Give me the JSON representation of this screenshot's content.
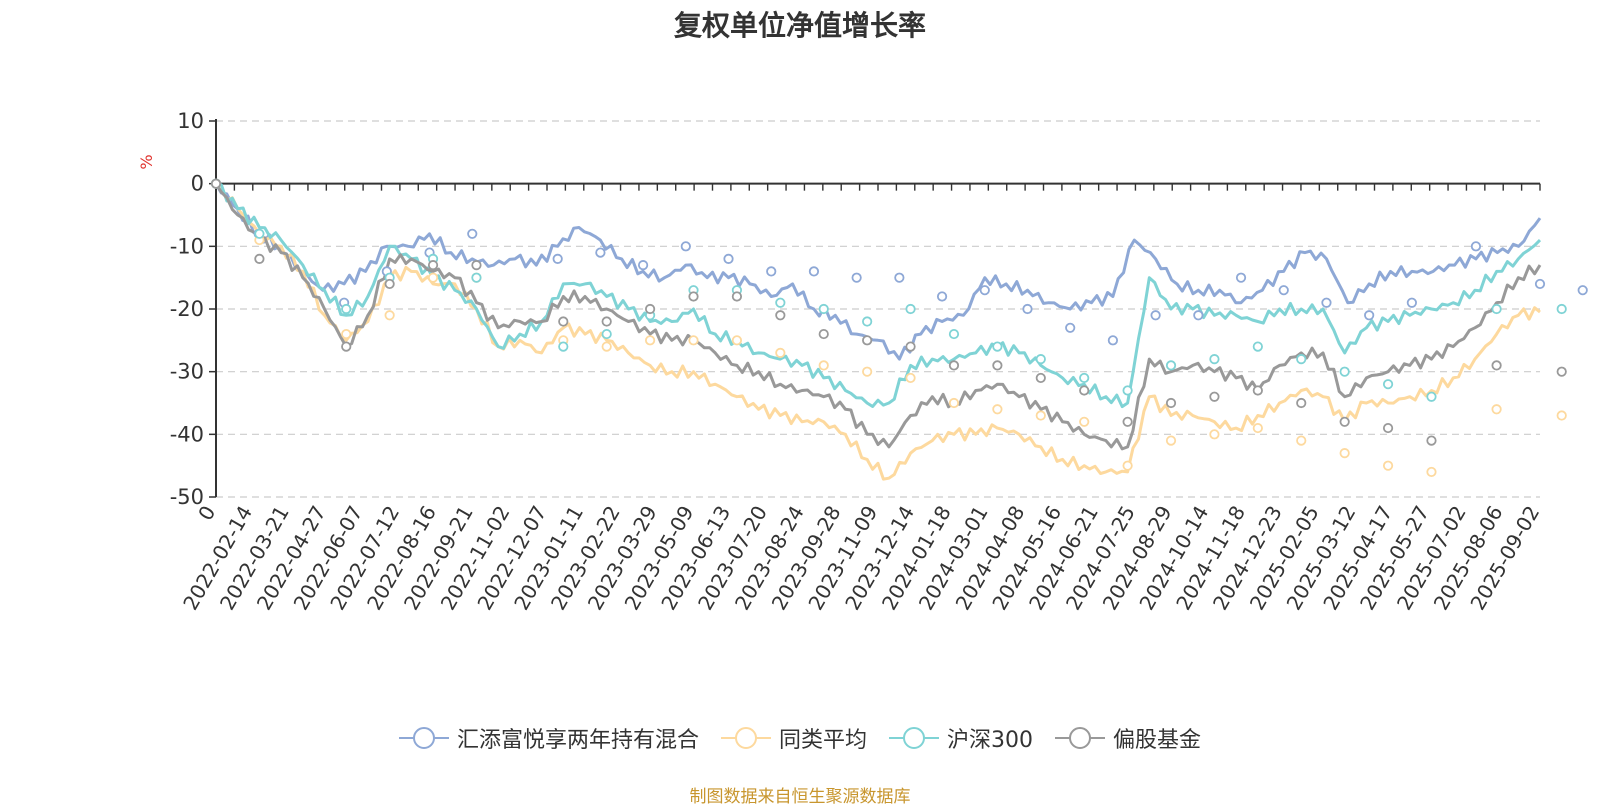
{
  "title": "复权单位净值增长率",
  "credit": "制图数据来自恒生聚源数据库",
  "colors": {
    "grid": "#cccccc",
    "axis": "#333333",
    "unit": "#e0332e"
  },
  "chart_data": {
    "type": "line",
    "ylabel": "%",
    "ylim": [
      -50,
      10
    ],
    "yticks": [
      10,
      0,
      -10,
      -20,
      -30,
      -40,
      -50
    ],
    "grid": "horizontal-dashed",
    "legend_position": "bottom",
    "x_tick_labels": [
      "0",
      "2022-02-14",
      "2022-03-21",
      "2022-04-27",
      "2022-06-07",
      "2022-07-12",
      "2022-08-16",
      "2022-09-21",
      "2022-11-02",
      "2022-12-07",
      "2023-01-11",
      "2023-02-22",
      "2023-03-29",
      "2023-05-09",
      "2023-06-13",
      "2023-07-20",
      "2023-08-24",
      "2023-09-28",
      "2023-11-09",
      "2023-12-14",
      "2024-01-18",
      "2024-03-01",
      "2024-04-08",
      "2024-05-16",
      "2024-06-21",
      "2024-07-25",
      "2024-08-29",
      "2024-10-14",
      "2024-11-18",
      "2024-12-23",
      "2025-02-05",
      "2025-03-12",
      "2025-04-17",
      "2025-05-27",
      "2025-07-02",
      "2025-08-06",
      "2025-09-02"
    ],
    "series": [
      {
        "name": "汇添富悦享两年持有混合",
        "color": "#8ea8d6",
        "values": [
          0,
          -4,
          -8,
          -10,
          -14,
          -17,
          -16,
          -14,
          -10,
          -10,
          -8,
          -11,
          -12,
          -13,
          -12,
          -13,
          -10,
          -7,
          -9,
          -12,
          -14,
          -15,
          -13,
          -15,
          -15,
          -16,
          -18,
          -16,
          -20,
          -21,
          -24,
          -25,
          -28,
          -24,
          -22,
          -21,
          -15,
          -16,
          -17,
          -19,
          -20,
          -19,
          -18,
          -9,
          -12,
          -16,
          -17,
          -17,
          -19,
          -17,
          -14,
          -11,
          -12,
          -19,
          -16,
          -14,
          -14,
          -14,
          -13,
          -12,
          -11,
          -10,
          -5.5
        ],
        "markers": [
          [
            0,
            0
          ],
          [
            2,
            -8
          ],
          [
            6,
            -19
          ],
          [
            8,
            -14
          ],
          [
            10,
            -11
          ],
          [
            12,
            -8
          ],
          [
            16,
            -12
          ],
          [
            18,
            -11
          ],
          [
            20,
            -13
          ],
          [
            22,
            -10
          ],
          [
            24,
            -12
          ],
          [
            26,
            -14
          ],
          [
            28,
            -14
          ],
          [
            30,
            -15
          ],
          [
            32,
            -15
          ],
          [
            34,
            -18
          ],
          [
            36,
            -17
          ],
          [
            38,
            -20
          ],
          [
            40,
            -23
          ],
          [
            42,
            -25
          ],
          [
            44,
            -21
          ],
          [
            46,
            -21
          ],
          [
            48,
            -15
          ],
          [
            50,
            -17
          ],
          [
            52,
            -19
          ],
          [
            54,
            -21
          ],
          [
            56,
            -19
          ],
          [
            59,
            -10
          ],
          [
            62,
            -16
          ],
          [
            64,
            -17
          ],
          [
            67,
            -19
          ],
          [
            69,
            -16
          ],
          [
            71,
            -12
          ],
          [
            73,
            -16
          ],
          [
            76,
            -14
          ],
          [
            78,
            -13
          ],
          [
            80,
            -11
          ],
          [
            82,
            -5.5
          ]
        ]
      },
      {
        "name": "同类平均",
        "color": "#fdd99e",
        "values": [
          0,
          -4,
          -8,
          -10,
          -14,
          -21,
          -25,
          -22,
          -15,
          -14,
          -16,
          -16,
          -20,
          -26,
          -25,
          -27,
          -23,
          -24,
          -25,
          -27,
          -29,
          -30,
          -30,
          -32,
          -34,
          -36,
          -37,
          -38,
          -38,
          -40,
          -44,
          -47,
          -43,
          -41,
          -40,
          -40,
          -39,
          -40,
          -42,
          -44,
          -45,
          -46,
          -46,
          -34,
          -37,
          -37,
          -38,
          -39,
          -37,
          -35,
          -33,
          -34,
          -38,
          -35,
          -35,
          -34,
          -33,
          -31,
          -28,
          -24,
          -21,
          -20.5
        ],
        "markers": [
          [
            0,
            0
          ],
          [
            2,
            -9
          ],
          [
            6,
            -24
          ],
          [
            8,
            -21
          ],
          [
            10,
            -15
          ],
          [
            12,
            -15
          ],
          [
            16,
            -25
          ],
          [
            18,
            -26
          ],
          [
            20,
            -25
          ],
          [
            22,
            -25
          ],
          [
            24,
            -25
          ],
          [
            26,
            -27
          ],
          [
            28,
            -29
          ],
          [
            30,
            -30
          ],
          [
            32,
            -31
          ],
          [
            34,
            -35
          ],
          [
            36,
            -36
          ],
          [
            38,
            -37
          ],
          [
            40,
            -38
          ],
          [
            42,
            -45
          ],
          [
            44,
            -41
          ],
          [
            46,
            -40
          ],
          [
            48,
            -39
          ],
          [
            50,
            -41
          ],
          [
            52,
            -43
          ],
          [
            54,
            -45
          ],
          [
            56,
            -46
          ],
          [
            59,
            -36
          ],
          [
            62,
            -37
          ],
          [
            64,
            -37
          ],
          [
            67,
            -37
          ],
          [
            69,
            -34
          ],
          [
            71,
            -37
          ],
          [
            73,
            -35
          ],
          [
            76,
            -35
          ],
          [
            78,
            -32
          ],
          [
            80,
            -27
          ],
          [
            82,
            -20.5
          ]
        ]
      },
      {
        "name": "沪深300",
        "color": "#7fd3d5",
        "values": [
          0,
          -4,
          -7,
          -9,
          -13,
          -17,
          -21,
          -18,
          -10,
          -12,
          -15,
          -17,
          -20,
          -26,
          -24,
          -22,
          -16,
          -16,
          -18,
          -20,
          -22,
          -22,
          -20,
          -24,
          -25,
          -27,
          -28,
          -29,
          -31,
          -33,
          -35,
          -35,
          -29,
          -28,
          -28,
          -27,
          -26,
          -27,
          -29,
          -31,
          -32,
          -34,
          -35,
          -15,
          -20,
          -20,
          -21,
          -21,
          -22,
          -20,
          -20,
          -20,
          -27,
          -23,
          -22,
          -21,
          -20,
          -19,
          -17,
          -14,
          -12,
          -9
        ],
        "markers": [
          [
            0,
            0
          ],
          [
            2,
            -8
          ],
          [
            6,
            -20
          ],
          [
            8,
            -15
          ],
          [
            10,
            -12
          ],
          [
            12,
            -15
          ],
          [
            16,
            -26
          ],
          [
            18,
            -24
          ],
          [
            20,
            -21
          ],
          [
            22,
            -17
          ],
          [
            24,
            -17
          ],
          [
            26,
            -19
          ],
          [
            28,
            -20
          ],
          [
            30,
            -22
          ],
          [
            32,
            -20
          ],
          [
            34,
            -24
          ],
          [
            36,
            -26
          ],
          [
            38,
            -28
          ],
          [
            40,
            -31
          ],
          [
            42,
            -33
          ],
          [
            44,
            -29
          ],
          [
            46,
            -28
          ],
          [
            48,
            -26
          ],
          [
            50,
            -28
          ],
          [
            52,
            -30
          ],
          [
            54,
            -32
          ],
          [
            56,
            -34
          ],
          [
            59,
            -20
          ],
          [
            62,
            -20
          ],
          [
            64,
            -20
          ],
          [
            67,
            -22
          ],
          [
            69,
            -20
          ],
          [
            71,
            -24
          ],
          [
            73,
            -22
          ],
          [
            76,
            -21
          ],
          [
            78,
            -17
          ],
          [
            80,
            -13
          ],
          [
            82,
            -9
          ]
        ]
      },
      {
        "name": "偏股基金",
        "color": "#999999",
        "values": [
          0,
          -5,
          -9,
          -11,
          -15,
          -20,
          -26,
          -21,
          -12,
          -12,
          -14,
          -15,
          -19,
          -23,
          -22,
          -22,
          -18,
          -18,
          -20,
          -22,
          -24,
          -25,
          -25,
          -27,
          -29,
          -30,
          -32,
          -33,
          -34,
          -36,
          -40,
          -42,
          -37,
          -34,
          -35,
          -33,
          -32,
          -34,
          -36,
          -38,
          -40,
          -41,
          -42,
          -28,
          -30,
          -29,
          -30,
          -31,
          -33,
          -29,
          -27,
          -27,
          -34,
          -31,
          -30,
          -29,
          -28,
          -26,
          -23,
          -19,
          -15,
          -13
        ],
        "markers": [
          [
            0,
            0
          ],
          [
            2,
            -12
          ],
          [
            6,
            -26
          ],
          [
            8,
            -16
          ],
          [
            10,
            -13
          ],
          [
            12,
            -13
          ],
          [
            16,
            -22
          ],
          [
            18,
            -22
          ],
          [
            20,
            -20
          ],
          [
            22,
            -18
          ],
          [
            24,
            -18
          ],
          [
            26,
            -21
          ],
          [
            28,
            -24
          ],
          [
            30,
            -25
          ],
          [
            32,
            -26
          ],
          [
            34,
            -29
          ],
          [
            36,
            -29
          ],
          [
            38,
            -31
          ],
          [
            40,
            -33
          ],
          [
            42,
            -38
          ],
          [
            44,
            -35
          ],
          [
            46,
            -34
          ],
          [
            48,
            -33
          ],
          [
            50,
            -35
          ],
          [
            52,
            -38
          ],
          [
            54,
            -39
          ],
          [
            56,
            -41
          ],
          [
            59,
            -29
          ],
          [
            62,
            -30
          ],
          [
            64,
            -31
          ],
          [
            67,
            -31
          ],
          [
            69,
            -27
          ],
          [
            71,
            -31
          ],
          [
            73,
            -29
          ],
          [
            76,
            -29
          ],
          [
            78,
            -25
          ],
          [
            80,
            -20
          ],
          [
            82,
            -13
          ]
        ]
      }
    ]
  }
}
